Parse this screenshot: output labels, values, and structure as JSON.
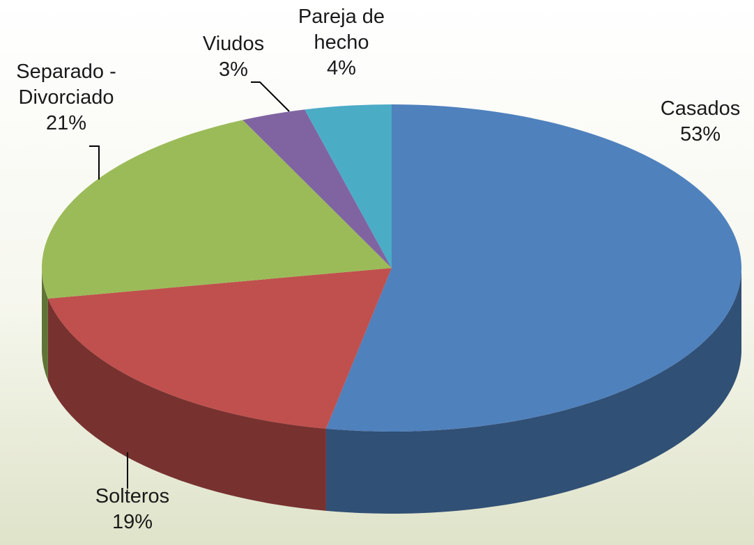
{
  "chart_data": {
    "type": "pie3d",
    "categories": [
      "Casados",
      "Solteros",
      "Separado - Divorciado",
      "Viudos",
      "Pareja de hecho"
    ],
    "values": [
      53,
      19,
      21,
      3,
      4
    ],
    "value_labels": [
      "53%",
      "19%",
      "21%",
      "3%",
      "4%"
    ],
    "colors": [
      "#4f81bd",
      "#c0504d",
      "#9bbb59",
      "#8064a2",
      "#4bacc6"
    ]
  }
}
